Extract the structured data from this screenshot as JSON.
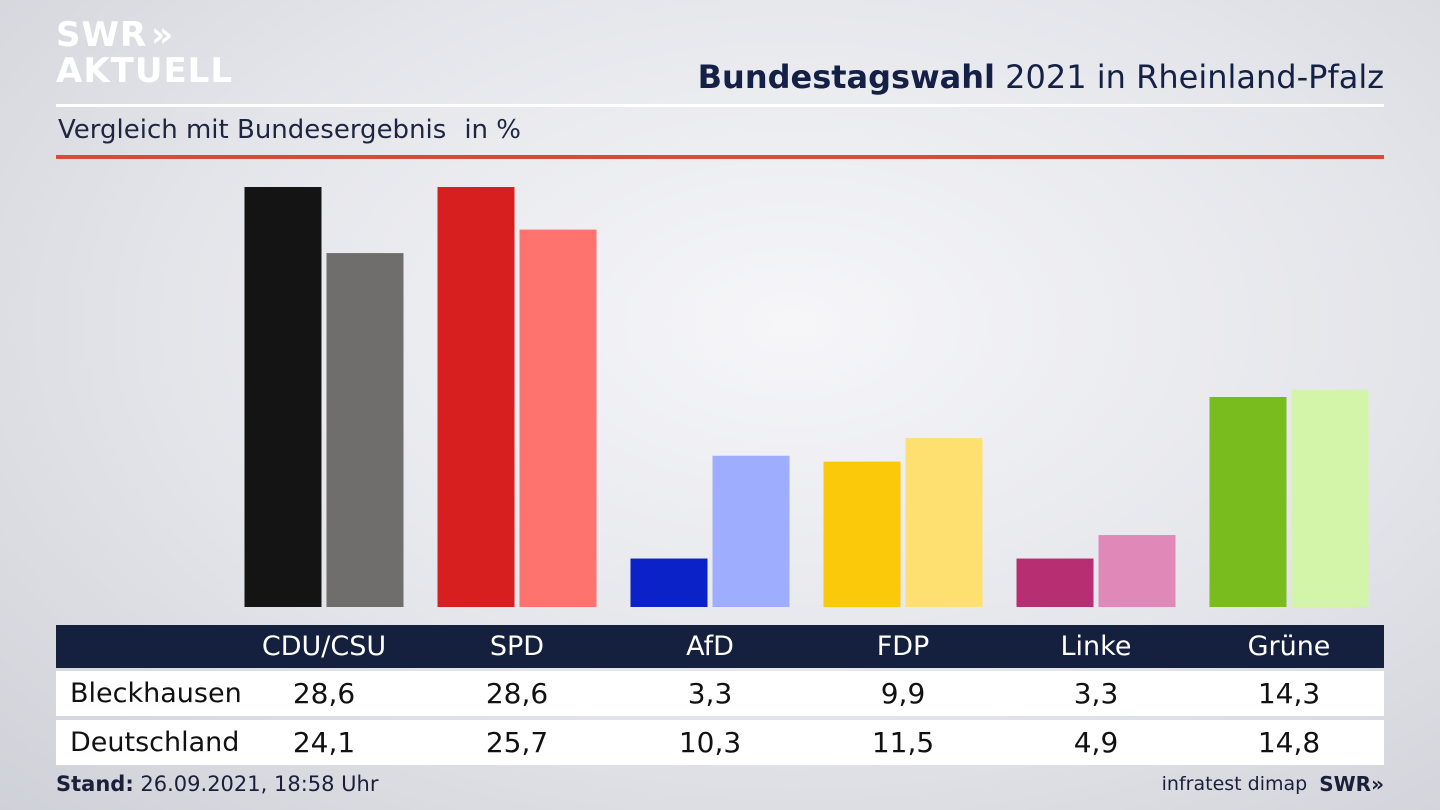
{
  "brand": {
    "line1": "SWR",
    "line2": "AKTUELL",
    "arrows": "»",
    "footer_logo": "SWR»"
  },
  "title_bold": "Bundestagswahl",
  "title_rest": " 2021 in Rheinland-Pfalz",
  "subtitle": "Vergleich mit Bundesergebnis",
  "unit": "in %",
  "footer": {
    "stand_label": "Stand:",
    "stand_value": " 26.09.2021, 18:58 Uhr",
    "source": "infratest dimap"
  },
  "table": {
    "rows": [
      {
        "label": "Bleckhausen",
        "values": [
          "28,6",
          "28,6",
          "3,3",
          "9,9",
          "3,3",
          "14,3"
        ]
      },
      {
        "label": "Deutschland",
        "values": [
          "24,1",
          "25,7",
          "10,3",
          "11,5",
          "4,9",
          "14,8"
        ]
      }
    ]
  },
  "chart_data": {
    "type": "bar",
    "title": "Bundestagswahl 2021 in Rheinland-Pfalz",
    "subtitle": "Vergleich mit Bundesergebnis",
    "categories": [
      "CDU/CSU",
      "SPD",
      "AfD",
      "FDP",
      "Linke",
      "Grüne"
    ],
    "series": [
      {
        "name": "Bleckhausen",
        "values": [
          28.6,
          28.6,
          3.3,
          9.9,
          3.3,
          14.3
        ],
        "colors": [
          "#141414",
          "#d81f1f",
          "#0a22c8",
          "#fcc90a",
          "#b82e72",
          "#78bc1e"
        ]
      },
      {
        "name": "Deutschland",
        "values": [
          24.1,
          25.7,
          10.3,
          11.5,
          4.9,
          14.8
        ],
        "colors": [
          "#706e6c",
          "#ff736e",
          "#9fadff",
          "#fde070",
          "#e089b9",
          "#d3f5a9"
        ]
      }
    ],
    "ylim": [
      0,
      28.6
    ],
    "grid": false
  }
}
